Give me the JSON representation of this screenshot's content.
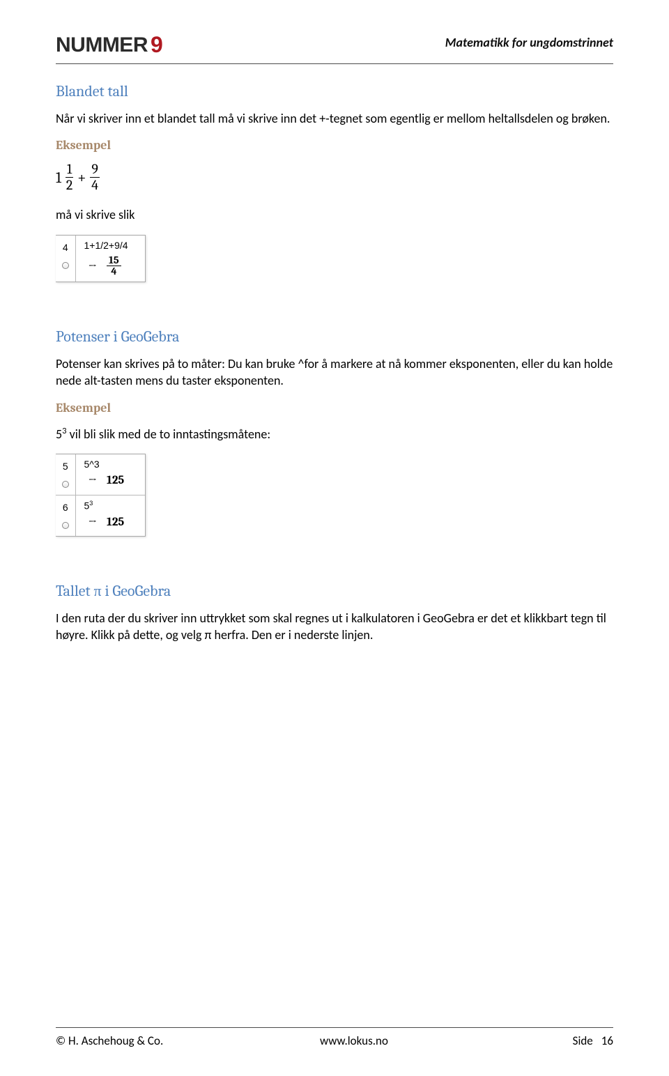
{
  "header": {
    "logo_text": "NUMMER",
    "logo_num": "9",
    "subtitle": "Matematikk for ungdomstrinnet"
  },
  "sec1": {
    "title": "Blandet tall",
    "para": "Når vi skriver inn et blandet tall må vi skrive inn det +-tegnet som egentlig er mellom heltallsdelen og brøken.",
    "eksempel": "Eksempel",
    "formula": {
      "lead": "1",
      "f1n": "1",
      "f1d": "2",
      "op": "+",
      "f2n": "9",
      "f2d": "4"
    },
    "after": "må vi skrive slik",
    "box": {
      "row": "4",
      "input": "1+1/2+9/4",
      "arrow": "→",
      "result_n": "15",
      "result_d": "4"
    }
  },
  "sec2": {
    "title": "Potenser i GeoGebra",
    "para": "Potenser kan skrives på to måter: Du kan bruke ^for å markere at nå kommer eksponenten, eller du kan holde nede alt-tasten mens du taster eksponenten.",
    "eksempel": "Eksempel",
    "line": {
      "pre": "5",
      "sup": "3",
      "post": " vil bli slik med de to inntastingsmåtene:"
    },
    "box": {
      "r1": {
        "row": "5",
        "input": "5^3",
        "arrow": "→",
        "result": "125"
      },
      "r2": {
        "row": "6",
        "input_base": "5",
        "input_sup": "3",
        "arrow": "→",
        "result": "125"
      }
    }
  },
  "sec3": {
    "title": "Tallet π i GeoGebra",
    "para": "I den ruta der du skriver inn uttrykket som skal regnes ut i kalkulatoren i GeoGebra er det et klikkbart tegn til høyre. Klikk på dette, og velg π herfra. Den er i nederste linjen."
  },
  "footer": {
    "left": "© H. Aschehoug & Co.",
    "center": "www.lokus.no",
    "right_label": "Side",
    "right_page": "16"
  }
}
